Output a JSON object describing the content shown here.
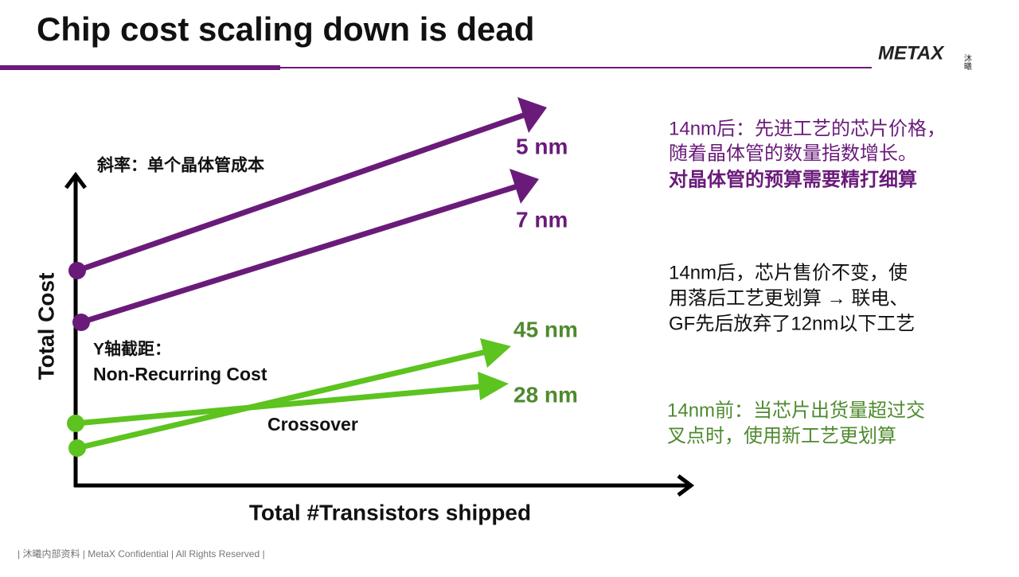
{
  "header": {
    "title": "Chip cost scaling down is dead",
    "logo": "METAX",
    "logo_cn": "沐曦"
  },
  "diagram": {
    "y_axis_label": "Total Cost",
    "x_axis_label": "Total #Transistors shipped",
    "slope_note": "斜率：单个晶体管成本",
    "intercept_note": [
      "Y轴截距：",
      "Non-Recurring Cost"
    ],
    "crossover": "Crossover",
    "lines": [
      {
        "label": "5 nm"
      },
      {
        "label": "7 nm"
      },
      {
        "label": "45 nm"
      },
      {
        "label": "28 nm"
      }
    ]
  },
  "notes": [
    {
      "lines": [
        "14nm后：先进工艺的芯片价格，",
        "随着晶体管的数量指数增长。",
        "对晶体管的预算需要精打细算"
      ]
    },
    {
      "lines": [
        "14nm后，芯片售价不变，使",
        "用落后工艺更划算 → 联电、",
        "GF先后放弃了12nm以下工艺"
      ]
    },
    {
      "lines": [
        "14nm前：当芯片出货量超过交",
        "叉点时，使用新工艺更划算"
      ]
    }
  ],
  "footer": "| 沐曦内部资料 | MetaX Confidential | All Rights Reserved |"
}
